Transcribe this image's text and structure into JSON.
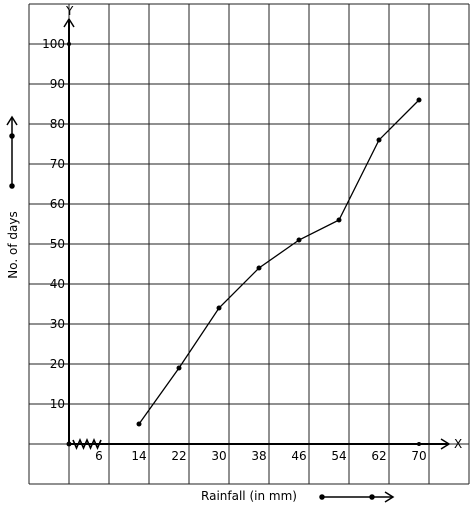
{
  "chart_data": {
    "type": "line",
    "title": "",
    "xlabel": "Rainfall (in mm)",
    "ylabel": "No. of days",
    "x_axis_letter": "X",
    "y_axis_letter": "Y",
    "x_ticks": [
      6,
      14,
      22,
      30,
      38,
      46,
      54,
      62,
      70
    ],
    "y_ticks": [
      10,
      20,
      30,
      40,
      50,
      60,
      70,
      80,
      90,
      100
    ],
    "xlim": [
      -2,
      74
    ],
    "ylim": [
      -10,
      110
    ],
    "grid": true,
    "x_axis_break": true,
    "series": [
      {
        "x": [
          14,
          22,
          30,
          38,
          46,
          54,
          62,
          70
        ],
        "y": [
          5,
          19,
          34,
          44,
          51,
          56,
          76,
          86
        ]
      }
    ]
  }
}
